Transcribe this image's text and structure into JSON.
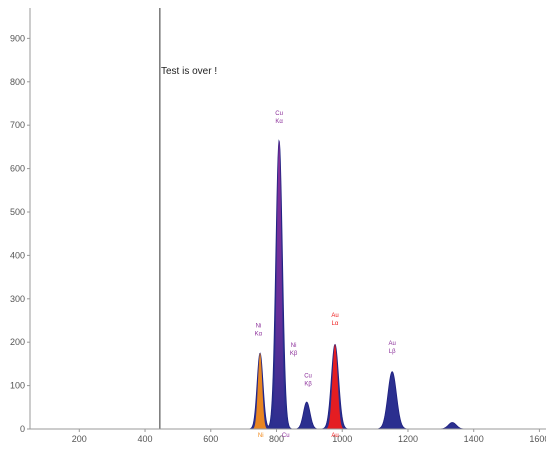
{
  "chart_data": {
    "type": "area",
    "status_text": "Test is over !",
    "xlim": [
      50,
      1620
    ],
    "ylim": [
      0,
      970
    ],
    "x_ticks": [
      "200",
      "400",
      "600",
      "800",
      "1000",
      "1200",
      "1400",
      "1600"
    ],
    "y_ticks": [
      "0",
      "100",
      "200",
      "300",
      "400",
      "500",
      "600",
      "700",
      "800",
      "900"
    ],
    "marker_x": 445,
    "grid": false,
    "legend": "none",
    "colors": {
      "spectrum": "#2b2f8f",
      "spectrum_dark": "#1f2180",
      "ni": "#f28a1c",
      "cu": "#8b2f9a",
      "au": "#ee1c1c",
      "marker": "#777777"
    },
    "spectrum_peaks": [
      {
        "center": 750,
        "height": 175,
        "sigma": 9
      },
      {
        "center": 808,
        "height": 665,
        "sigma": 10
      },
      {
        "center": 892,
        "height": 62,
        "sigma": 10
      },
      {
        "center": 978,
        "height": 195,
        "sigma": 11
      },
      {
        "center": 1152,
        "height": 132,
        "sigma": 13
      },
      {
        "center": 1335,
        "height": 15,
        "sigma": 12
      }
    ],
    "highlights": [
      {
        "element": "Ni",
        "center": 750,
        "height": 175,
        "sigma": 9,
        "color": "#f28a1c"
      },
      {
        "element": "Cu",
        "center": 808,
        "height": 665,
        "sigma": 10,
        "color": "#8b2f9a"
      },
      {
        "element": "Au",
        "center": 978,
        "height": 195,
        "sigma": 11,
        "color": "#ee1c1c"
      }
    ],
    "peak_labels": [
      {
        "x": 745,
        "y": 215,
        "line1": "Ni",
        "line2": "Kα",
        "color": "#8b2f9a"
      },
      {
        "x": 808,
        "y": 705,
        "line1": "Cu",
        "line2": "Kα",
        "color": "#8b2f9a"
      },
      {
        "x": 852,
        "y": 170,
        "line1": "Ni",
        "line2": "Kβ",
        "color": "#8b2f9a"
      },
      {
        "x": 896,
        "y": 100,
        "line1": "Cu",
        "line2": "Kβ",
        "color": "#8b2f9a"
      },
      {
        "x": 978,
        "y": 240,
        "line1": "Au",
        "line2": "Lα",
        "color": "#ee1c1c"
      },
      {
        "x": 1152,
        "y": 175,
        "line1": "Au",
        "line2": "Lβ",
        "color": "#8b2f9a"
      }
    ],
    "axis_labels": [
      {
        "x": 752,
        "text": "Ni",
        "color": "#f28a1c"
      },
      {
        "x": 828,
        "text": "Cu",
        "color": "#8b2f9a"
      },
      {
        "x": 978,
        "text": "Au",
        "color": "#ee1c1c"
      }
    ]
  }
}
